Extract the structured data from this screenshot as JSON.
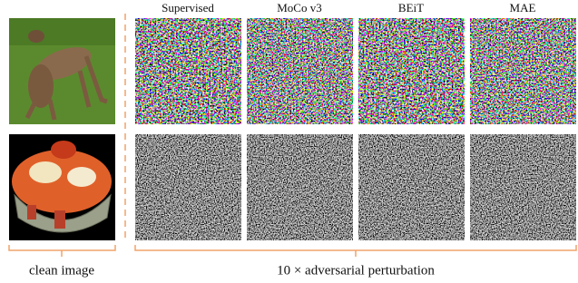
{
  "header": {
    "columns": [
      "Supervised",
      "MoCo v3",
      "BEiT",
      "MAE"
    ]
  },
  "captions": {
    "left": "clean image",
    "right": "10 × adversarial perturbation"
  }
}
